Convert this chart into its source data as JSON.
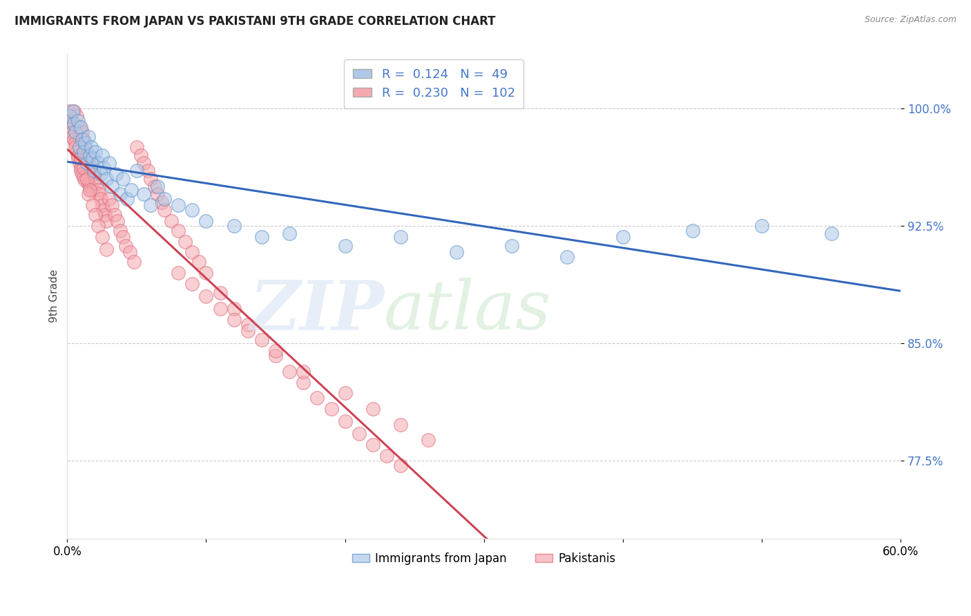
{
  "title": "IMMIGRANTS FROM JAPAN VS PAKISTANI 9TH GRADE CORRELATION CHART",
  "source": "Source: ZipAtlas.com",
  "ylabel": "9th Grade",
  "ytick_labels": [
    "77.5%",
    "85.0%",
    "92.5%",
    "100.0%"
  ],
  "ytick_values": [
    0.775,
    0.85,
    0.925,
    1.0
  ],
  "xlim": [
    0.0,
    0.6
  ],
  "ylim": [
    0.725,
    1.035
  ],
  "japan_R": 0.124,
  "japan_N": 49,
  "pakistan_R": 0.23,
  "pakistan_N": 102,
  "japan_color": "#aec8e8",
  "pakistan_color": "#f4a8b0",
  "japan_edge_color": "#5590c8",
  "pakistan_edge_color": "#e06878",
  "japan_line_color": "#3366bb",
  "pakistan_line_color": "#cc4455",
  "legend_label_japan": "Immigrants from Japan",
  "legend_label_pakistan": "Pakistanis",
  "japan_points_x": [
    0.002,
    0.004,
    0.005,
    0.006,
    0.008,
    0.009,
    0.01,
    0.011,
    0.012,
    0.013,
    0.014,
    0.015,
    0.016,
    0.017,
    0.018,
    0.019,
    0.02,
    0.022,
    0.024,
    0.025,
    0.026,
    0.028,
    0.03,
    0.032,
    0.035,
    0.038,
    0.04,
    0.043,
    0.046,
    0.05,
    0.055,
    0.06,
    0.065,
    0.07,
    0.08,
    0.09,
    0.1,
    0.12,
    0.14,
    0.16,
    0.2,
    0.24,
    0.28,
    0.32,
    0.36,
    0.4,
    0.45,
    0.5,
    0.55
  ],
  "japan_points_y": [
    0.995,
    0.998,
    0.99,
    0.985,
    0.992,
    0.975,
    0.988,
    0.98,
    0.972,
    0.978,
    0.965,
    0.982,
    0.97,
    0.975,
    0.968,
    0.96,
    0.972,
    0.965,
    0.958,
    0.97,
    0.962,
    0.955,
    0.965,
    0.95,
    0.958,
    0.945,
    0.955,
    0.942,
    0.948,
    0.96,
    0.945,
    0.938,
    0.95,
    0.942,
    0.938,
    0.935,
    0.928,
    0.925,
    0.918,
    0.92,
    0.912,
    0.918,
    0.908,
    0.912,
    0.905,
    0.918,
    0.922,
    0.925,
    0.92
  ],
  "pakistan_points_x": [
    0.001,
    0.002,
    0.002,
    0.003,
    0.003,
    0.004,
    0.004,
    0.005,
    0.005,
    0.006,
    0.006,
    0.007,
    0.007,
    0.008,
    0.008,
    0.009,
    0.009,
    0.01,
    0.01,
    0.011,
    0.011,
    0.012,
    0.012,
    0.013,
    0.013,
    0.014,
    0.015,
    0.015,
    0.016,
    0.017,
    0.017,
    0.018,
    0.019,
    0.02,
    0.021,
    0.022,
    0.023,
    0.024,
    0.025,
    0.026,
    0.027,
    0.028,
    0.03,
    0.032,
    0.034,
    0.036,
    0.038,
    0.04,
    0.042,
    0.045,
    0.048,
    0.05,
    0.053,
    0.055,
    0.058,
    0.06,
    0.063,
    0.065,
    0.068,
    0.07,
    0.075,
    0.08,
    0.085,
    0.09,
    0.095,
    0.1,
    0.11,
    0.12,
    0.13,
    0.14,
    0.15,
    0.16,
    0.17,
    0.18,
    0.19,
    0.2,
    0.21,
    0.22,
    0.23,
    0.24,
    0.015,
    0.018,
    0.02,
    0.022,
    0.025,
    0.028,
    0.01,
    0.012,
    0.014,
    0.016,
    0.08,
    0.09,
    0.1,
    0.11,
    0.12,
    0.13,
    0.15,
    0.17,
    0.2,
    0.22,
    0.24,
    0.26
  ],
  "pakistan_points_y": [
    0.998,
    0.995,
    0.992,
    0.99,
    0.988,
    0.985,
    0.982,
    0.998,
    0.98,
    0.978,
    0.975,
    0.995,
    0.972,
    0.97,
    0.968,
    0.965,
    0.988,
    0.962,
    0.96,
    0.985,
    0.958,
    0.98,
    0.956,
    0.975,
    0.954,
    0.97,
    0.952,
    0.968,
    0.95,
    0.965,
    0.962,
    0.948,
    0.958,
    0.955,
    0.952,
    0.948,
    0.945,
    0.942,
    0.938,
    0.935,
    0.932,
    0.928,
    0.942,
    0.938,
    0.932,
    0.928,
    0.922,
    0.918,
    0.912,
    0.908,
    0.902,
    0.975,
    0.97,
    0.965,
    0.96,
    0.955,
    0.95,
    0.945,
    0.94,
    0.935,
    0.928,
    0.922,
    0.915,
    0.908,
    0.902,
    0.895,
    0.882,
    0.872,
    0.862,
    0.852,
    0.842,
    0.832,
    0.825,
    0.815,
    0.808,
    0.8,
    0.792,
    0.785,
    0.778,
    0.772,
    0.945,
    0.938,
    0.932,
    0.925,
    0.918,
    0.91,
    0.968,
    0.962,
    0.955,
    0.948,
    0.895,
    0.888,
    0.88,
    0.872,
    0.865,
    0.858,
    0.845,
    0.832,
    0.818,
    0.808,
    0.798,
    0.788
  ]
}
